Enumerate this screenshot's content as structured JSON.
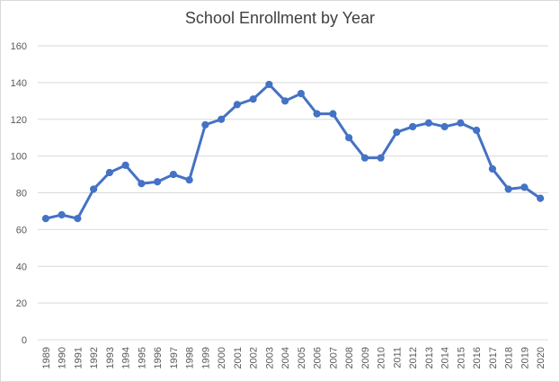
{
  "chart_data": {
    "type": "line",
    "title": "School Enrollment by Year",
    "xlabel": "",
    "ylabel": "",
    "ylim": [
      0,
      160
    ],
    "yticks": [
      0,
      20,
      40,
      60,
      80,
      100,
      120,
      140,
      160
    ],
    "grid": true,
    "legend": "none",
    "series_color": "#4472c4",
    "categories": [
      "1989",
      "1990",
      "1991",
      "1992",
      "1993",
      "1994",
      "1995",
      "1996",
      "1997",
      "1998",
      "1999",
      "2000",
      "2001",
      "2002",
      "2003",
      "2004",
      "2005",
      "2006",
      "2007",
      "2008",
      "2009",
      "2010",
      "2011",
      "2012",
      "2013",
      "2014",
      "2015",
      "2016",
      "2017",
      "2018",
      "2019",
      "2020"
    ],
    "series": [
      {
        "values": [
          66,
          68,
          66,
          82,
          91,
          95,
          85,
          86,
          90,
          87,
          117,
          120,
          128,
          131,
          139,
          130,
          134,
          123,
          123,
          110,
          99,
          99,
          113,
          116,
          118,
          116,
          118,
          114,
          93,
          82,
          83,
          77
        ]
      }
    ]
  }
}
